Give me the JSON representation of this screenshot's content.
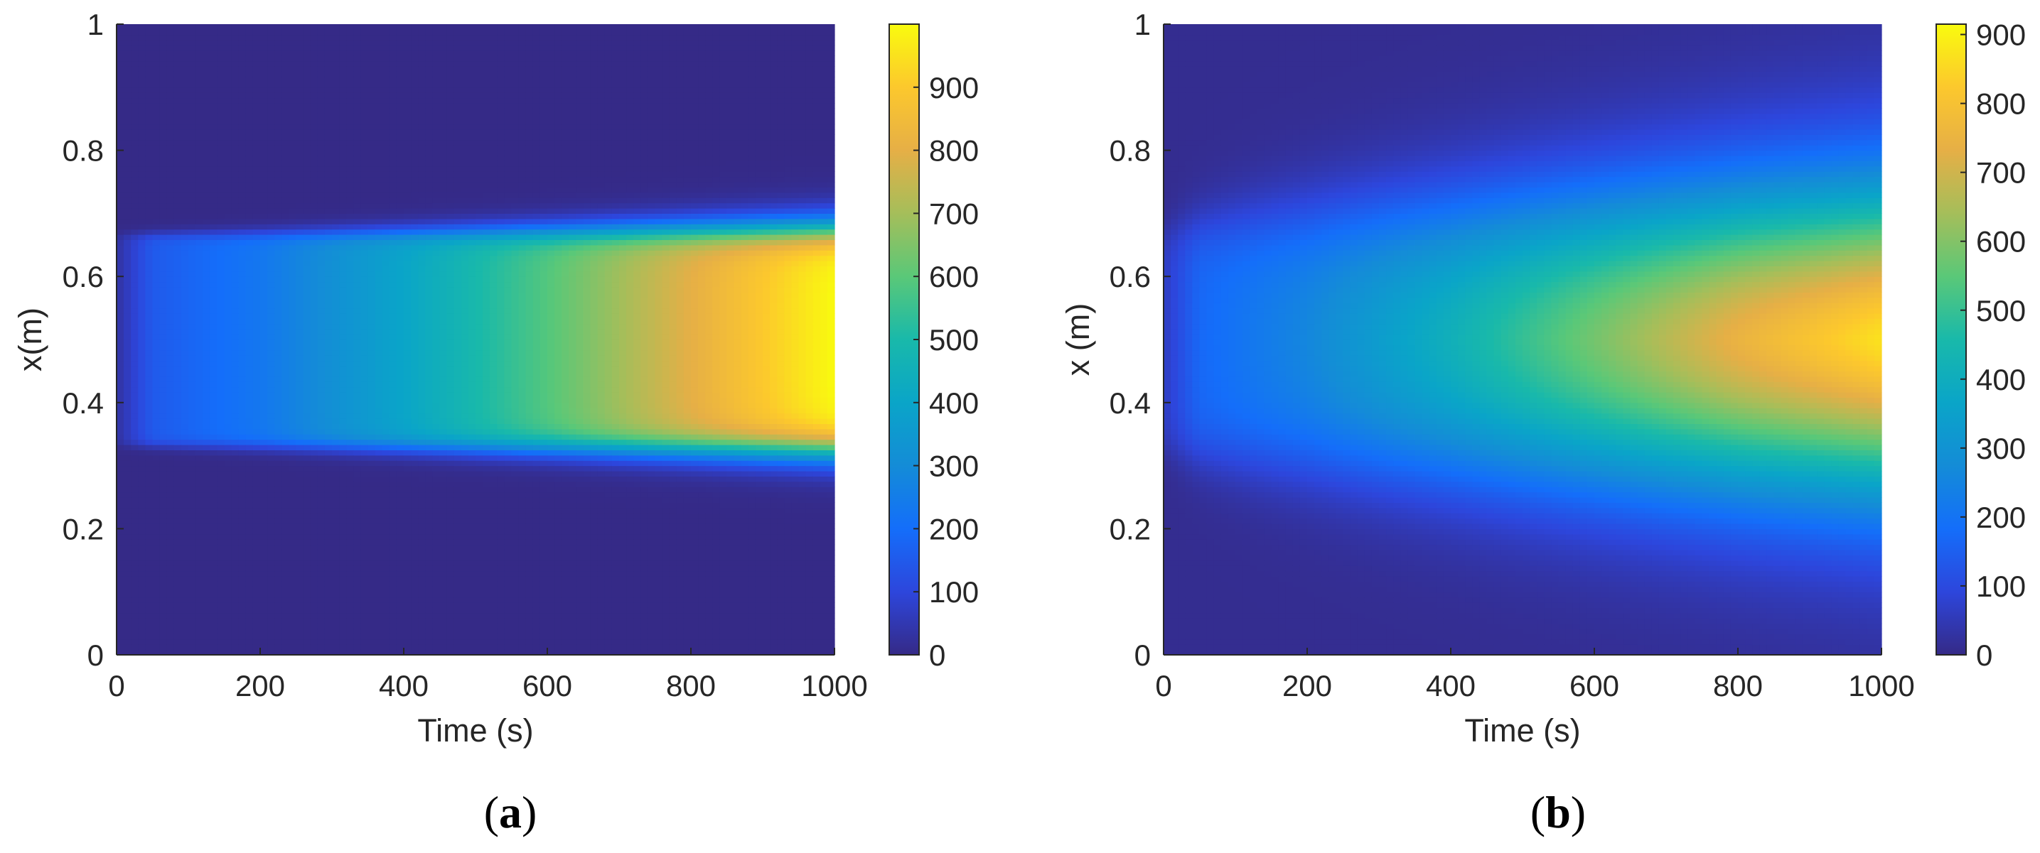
{
  "chart_data": [
    {
      "type": "heatmap",
      "panel_label": "(a)",
      "xlabel": "Time (s)",
      "ylabel": "x(m)",
      "xlim": [
        0,
        1000
      ],
      "ylim": [
        0,
        1
      ],
      "x_ticks": [
        "0",
        "200",
        "400",
        "600",
        "800",
        "1000"
      ],
      "y_ticks": [
        "0",
        "0.2",
        "0.4",
        "0.6",
        "0.8",
        "1"
      ],
      "colorbar": {
        "range": [
          0,
          1000
        ],
        "ticks": [
          "0",
          "100",
          "200",
          "300",
          "400",
          "500",
          "600",
          "700",
          "800",
          "900"
        ]
      },
      "field": {
        "description_values": "Sharp-edged band between x≈0.333 and x≈0.667 whose value rises roughly linearly from ~30 at t=0 to ~1000 at t=1000; outside the band the value is ~0.",
        "band_lower": 0.333,
        "band_upper": 0.667,
        "band_value_at_time": {
          "t": [
            0,
            50,
            200,
            400,
            600,
            800,
            1000
          ],
          "v": [
            30,
            150,
            230,
            400,
            590,
            800,
            1000
          ]
        },
        "background_value": 0
      }
    },
    {
      "type": "heatmap",
      "panel_label": "(b)",
      "xlabel": "Time (s)",
      "ylabel": "x (m)",
      "xlim": [
        0,
        1000
      ],
      "ylim": [
        0,
        1
      ],
      "x_ticks": [
        "0",
        "200",
        "400",
        "600",
        "800",
        "1000"
      ],
      "y_ticks": [
        "0",
        "0.2",
        "0.4",
        "0.6",
        "0.8",
        "1"
      ],
      "colorbar": {
        "range": [
          0,
          915
        ],
        "ticks": [
          "0",
          "100",
          "200",
          "300",
          "400",
          "500",
          "600",
          "700",
          "800",
          "900"
        ]
      },
      "field": {
        "description_values": "Diffusing band centered at x=0.5 with peak rising from ~60 at t=0 to ~915 at t=1000 and widening over time.",
        "center": 0.5,
        "peak_at_time": {
          "t": [
            0,
            50,
            200,
            400,
            600,
            800,
            1000
          ],
          "v": [
            60,
            170,
            260,
            420,
            600,
            780,
            915
          ]
        },
        "background_value": 10
      }
    }
  ],
  "colormap": "parula",
  "captions": {
    "a": "(a)",
    "b": "(b)"
  }
}
